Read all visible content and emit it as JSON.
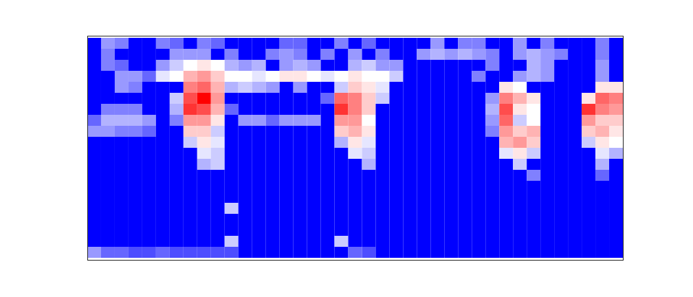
{
  "chart_data": {
    "type": "heatmap",
    "tick_labels": false,
    "cells": [
      [
        0,
        30,
        25,
        0,
        0,
        25,
        20,
        0,
        25,
        20,
        0,
        0,
        0,
        0,
        20,
        20,
        0,
        0,
        25,
        0,
        20,
        0,
        0,
        0,
        0,
        30,
        0,
        25,
        25,
        0,
        0,
        30,
        0,
        25,
        0,
        0,
        0,
        25,
        0
      ],
      [
        0,
        25,
        0,
        0,
        0,
        0,
        30,
        30,
        30,
        0,
        25,
        0,
        0,
        25,
        30,
        25,
        0,
        25,
        0,
        30,
        0,
        25,
        0,
        0,
        30,
        35,
        30,
        35,
        30,
        25,
        0,
        30,
        35,
        30,
        25,
        0,
        0,
        25,
        0
      ],
      [
        0,
        25,
        20,
        0,
        0,
        30,
        40,
        50,
        55,
        50,
        35,
        30,
        35,
        0,
        30,
        35,
        30,
        0,
        0,
        35,
        40,
        30,
        30,
        0,
        0,
        0,
        0,
        0,
        0,
        25,
        0,
        0,
        35,
        30,
        0,
        0,
        0,
        30,
        0
      ],
      [
        0,
        0,
        30,
        30,
        20,
        45,
        50,
        65,
        70,
        60,
        50,
        50,
        45,
        50,
        55,
        55,
        50,
        45,
        50,
        55,
        50,
        50,
        40,
        0,
        0,
        0,
        0,
        0,
        25,
        0,
        0,
        30,
        35,
        30,
        0,
        0,
        0,
        30,
        0
      ],
      [
        0,
        0,
        30,
        25,
        0,
        0,
        0,
        75,
        80,
        65,
        35,
        40,
        35,
        30,
        0,
        30,
        0,
        0,
        40,
        60,
        55,
        45,
        0,
        0,
        0,
        0,
        0,
        0,
        0,
        0,
        55,
        50,
        0,
        0,
        0,
        0,
        0,
        55,
        55
      ],
      [
        0,
        0,
        0,
        0,
        0,
        0,
        40,
        85,
        100,
        70,
        0,
        0,
        0,
        0,
        0,
        0,
        0,
        20,
        80,
        75,
        60,
        40,
        0,
        0,
        0,
        0,
        0,
        0,
        0,
        30,
        75,
        65,
        55,
        0,
        0,
        0,
        55,
        80,
        75
      ],
      [
        0,
        25,
        25,
        25,
        0,
        0,
        35,
        90,
        85,
        65,
        20,
        0,
        0,
        0,
        0,
        0,
        0,
        0,
        90,
        75,
        60,
        0,
        0,
        0,
        0,
        0,
        0,
        0,
        0,
        35,
        85,
        55,
        50,
        0,
        0,
        0,
        90,
        75,
        70
      ],
      [
        20,
        35,
        35,
        35,
        30,
        0,
        25,
        70,
        70,
        55,
        0,
        30,
        30,
        20,
        30,
        30,
        30,
        0,
        70,
        70,
        50,
        0,
        0,
        0,
        0,
        0,
        0,
        0,
        0,
        30,
        80,
        40,
        50,
        0,
        0,
        0,
        70,
        60,
        60
      ],
      [
        30,
        30,
        25,
        25,
        20,
        0,
        0,
        60,
        60,
        40,
        0,
        0,
        0,
        0,
        0,
        0,
        0,
        0,
        60,
        65,
        55,
        0,
        0,
        0,
        0,
        0,
        0,
        0,
        0,
        25,
        70,
        60,
        65,
        0,
        0,
        0,
        60,
        65,
        55
      ],
      [
        0,
        0,
        0,
        0,
        0,
        0,
        0,
        40,
        55,
        45,
        0,
        0,
        0,
        0,
        0,
        0,
        0,
        0,
        35,
        55,
        45,
        0,
        0,
        0,
        0,
        0,
        0,
        0,
        0,
        0,
        65,
        70,
        60,
        0,
        0,
        0,
        40,
        55,
        50
      ],
      [
        0,
        0,
        0,
        0,
        0,
        0,
        0,
        0,
        45,
        40,
        0,
        0,
        0,
        0,
        0,
        0,
        0,
        0,
        0,
        45,
        40,
        0,
        0,
        0,
        0,
        0,
        0,
        0,
        0,
        0,
        45,
        55,
        40,
        0,
        0,
        0,
        0,
        45,
        35
      ],
      [
        0,
        0,
        0,
        0,
        0,
        0,
        0,
        0,
        35,
        40,
        0,
        0,
        0,
        0,
        0,
        0,
        0,
        0,
        0,
        0,
        35,
        0,
        0,
        0,
        0,
        0,
        0,
        0,
        0,
        0,
        0,
        40,
        0,
        0,
        0,
        0,
        0,
        35,
        0
      ],
      [
        0,
        0,
        0,
        0,
        0,
        0,
        0,
        0,
        0,
        0,
        0,
        0,
        0,
        0,
        0,
        0,
        0,
        0,
        0,
        0,
        0,
        0,
        0,
        0,
        0,
        0,
        0,
        0,
        0,
        0,
        0,
        0,
        25,
        0,
        0,
        0,
        0,
        20,
        0
      ],
      [
        0,
        0,
        0,
        0,
        0,
        0,
        0,
        0,
        0,
        0,
        0,
        0,
        0,
        0,
        0,
        0,
        0,
        0,
        0,
        0,
        0,
        0,
        0,
        0,
        0,
        0,
        0,
        0,
        0,
        0,
        0,
        0,
        0,
        0,
        0,
        0,
        0,
        0,
        0
      ],
      [
        0,
        0,
        0,
        0,
        0,
        0,
        0,
        0,
        0,
        0,
        0,
        0,
        0,
        0,
        0,
        0,
        0,
        0,
        0,
        0,
        0,
        0,
        0,
        0,
        0,
        0,
        0,
        0,
        0,
        0,
        0,
        0,
        0,
        0,
        0,
        0,
        0,
        0,
        0
      ],
      [
        0,
        0,
        0,
        0,
        0,
        0,
        0,
        0,
        0,
        0,
        40,
        0,
        0,
        0,
        0,
        0,
        0,
        0,
        0,
        0,
        0,
        0,
        0,
        0,
        0,
        0,
        0,
        0,
        0,
        0,
        0,
        0,
        0,
        0,
        0,
        0,
        0,
        0,
        0
      ],
      [
        0,
        0,
        0,
        0,
        0,
        0,
        0,
        0,
        0,
        0,
        0,
        0,
        0,
        0,
        0,
        0,
        0,
        0,
        0,
        0,
        0,
        0,
        0,
        0,
        0,
        0,
        0,
        0,
        0,
        0,
        0,
        0,
        0,
        0,
        0,
        0,
        0,
        0,
        0
      ],
      [
        0,
        0,
        0,
        0,
        0,
        0,
        0,
        0,
        0,
        0,
        0,
        0,
        0,
        0,
        0,
        0,
        0,
        0,
        0,
        0,
        0,
        0,
        0,
        0,
        0,
        0,
        0,
        0,
        0,
        0,
        0,
        0,
        0,
        0,
        0,
        0,
        0,
        0,
        0
      ],
      [
        0,
        0,
        0,
        0,
        0,
        0,
        0,
        0,
        0,
        0,
        40,
        0,
        0,
        0,
        0,
        0,
        0,
        0,
        40,
        0,
        0,
        0,
        0,
        0,
        0,
        0,
        0,
        0,
        0,
        0,
        0,
        0,
        0,
        0,
        0,
        0,
        0,
        0,
        0
      ],
      [
        30,
        20,
        20,
        15,
        15,
        20,
        15,
        15,
        15,
        15,
        15,
        0,
        0,
        0,
        0,
        0,
        0,
        0,
        0,
        20,
        15,
        0,
        0,
        0,
        0,
        0,
        0,
        0,
        0,
        0,
        0,
        0,
        0,
        0,
        0,
        0,
        0,
        0,
        0
      ]
    ]
  }
}
